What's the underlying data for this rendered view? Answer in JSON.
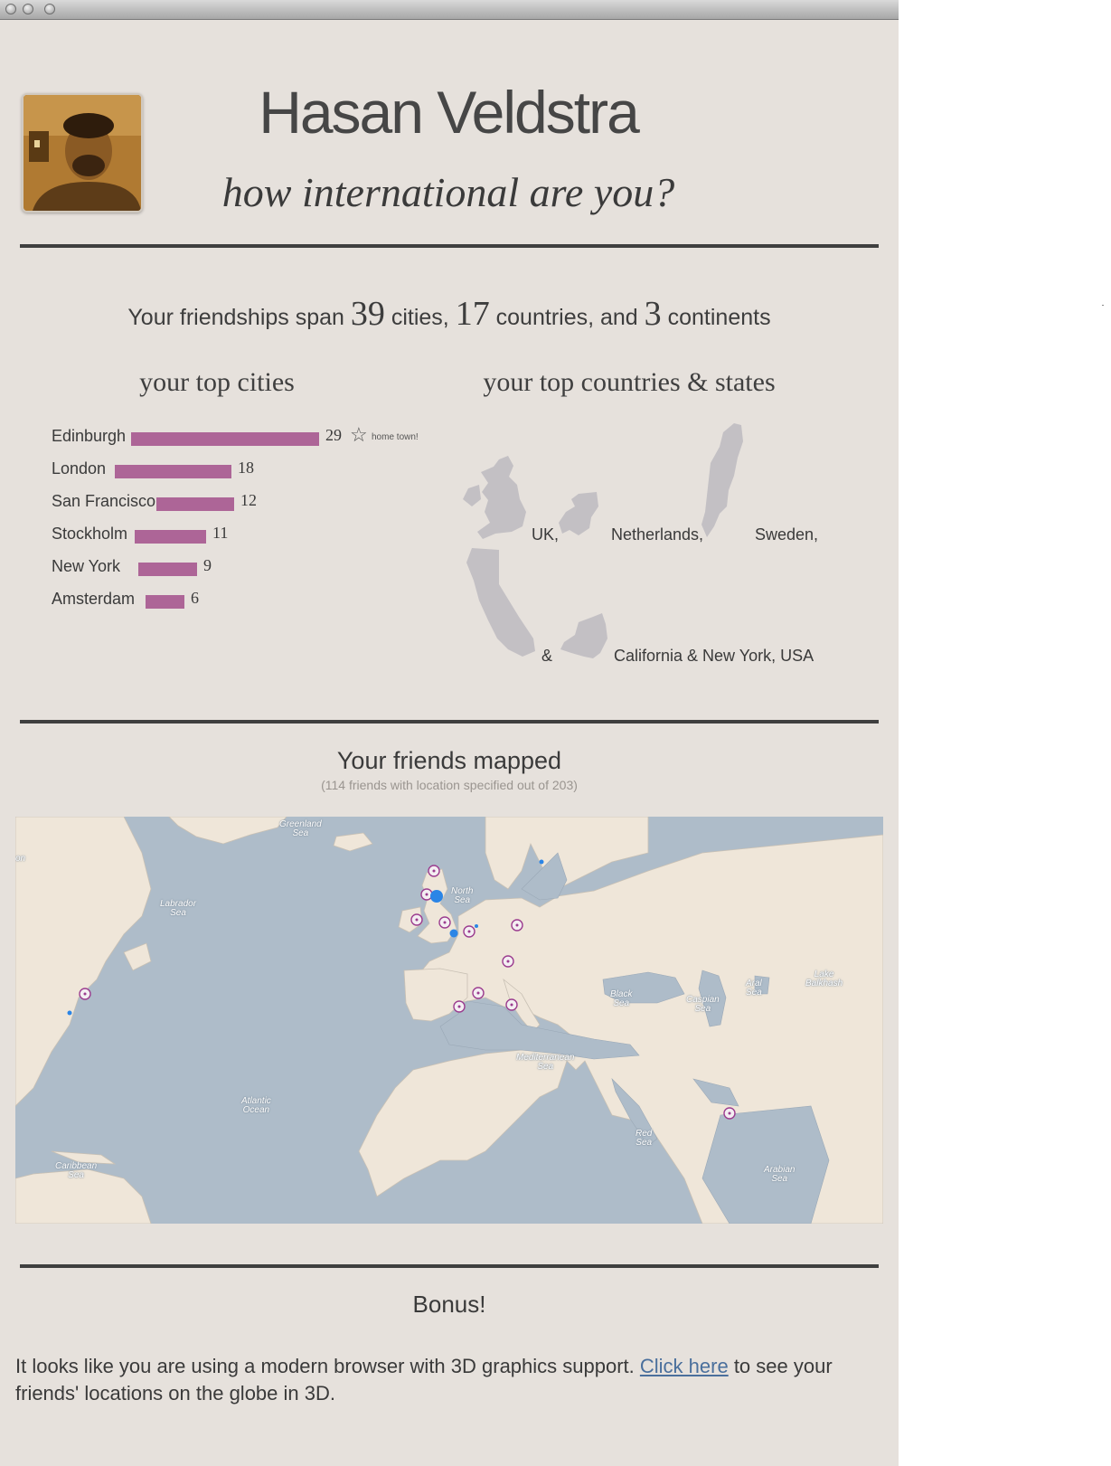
{
  "profile": {
    "name": "Hasan Veldstra",
    "tagline": "how international are you?"
  },
  "summary": {
    "prefix": "Your friendships span",
    "cities_count": "39",
    "cities_word": "cities,",
    "countries_count": "17",
    "countries_word": "countries, and",
    "continents_count": "3",
    "continents_word": "continents"
  },
  "top_cities": {
    "heading": "your top cities",
    "max": 29,
    "items": [
      {
        "name": "Edinburgh",
        "value": 29,
        "star": "☆",
        "note": "home town!"
      },
      {
        "name": "London",
        "value": 18
      },
      {
        "name": "San Francisco",
        "value": 12
      },
      {
        "name": "Stockholm",
        "value": 11
      },
      {
        "name": "New York",
        "value": 9
      },
      {
        "name": "Amsterdam",
        "value": 6
      }
    ],
    "bar_color": "#ad6597"
  },
  "top_countries": {
    "heading": "your top countries & states",
    "labels": [
      "UK,",
      "Netherlands,",
      "Sweden,",
      "&",
      "California & New York, USA"
    ]
  },
  "map_section": {
    "title": "Your friends mapped",
    "subtitle": "(114 friends with location specified out of 203)",
    "labels": {
      "greenland": "Greenland\nSea",
      "labrador": "Labrador\nSea",
      "north_sea": "North\nSea",
      "black_sea": "Black\nSea",
      "caspian": "Caspian\nSea",
      "aral": "Aral\nSea",
      "balkhash": "Lake\nBalkhash",
      "med": "Mediterranean\nSea",
      "atlantic": "Atlantic\nOcean",
      "red": "Red\nSea",
      "arabian": "Arabian\nSea",
      "caribbean": "Caribbean\nSea",
      "edge": "on"
    },
    "colors": {
      "sea": "#aebcc9",
      "land": "#efe6d9",
      "marker": "#9b3c8f",
      "dot": "#2b85e6"
    }
  },
  "bonus": {
    "title": "Bonus!",
    "text_before": "It looks like you are using a modern browser with 3D graphics support. ",
    "link": "Click here",
    "text_after": " to see your friends' locations on the globe in 3D."
  }
}
